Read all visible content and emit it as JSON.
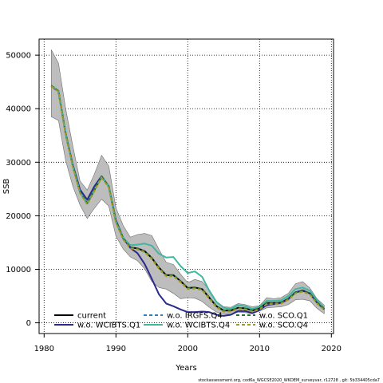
{
  "chart_data": {
    "type": "line",
    "xlabel": "Years",
    "ylabel": "SSB",
    "xlim": [
      1979.3,
      2020.3
    ],
    "ylim": [
      -2000,
      53000
    ],
    "x_ticks": [
      1980,
      1990,
      2000,
      2010,
      2020
    ],
    "y_ticks": [
      0,
      10000,
      20000,
      30000,
      40000,
      50000
    ],
    "grid": true,
    "grid_style": "dotted",
    "legend_position": "bottom-left, inside plot, three columns",
    "caption": "stockassessment.org, cod6a_WGCSE2020_WKDEM_surveyvar, r12728 , git: 5b334405cda7",
    "years": [
      1981,
      1982,
      1983,
      1984,
      1985,
      1986,
      1987,
      1988,
      1989,
      1990,
      1991,
      1992,
      1993,
      1994,
      1995,
      1996,
      1997,
      1998,
      1999,
      2000,
      2001,
      2002,
      2003,
      2004,
      2005,
      2006,
      2007,
      2008,
      2009,
      2010,
      2011,
      2012,
      2013,
      2014,
      2015,
      2016,
      2017,
      2018,
      2019
    ],
    "confidence_band": {
      "label": "current",
      "color": "#bdbdbd",
      "upper": [
        51000,
        48500,
        40000,
        33000,
        26500,
        24800,
        27800,
        31300,
        29300,
        21500,
        18200,
        16000,
        16500,
        16700,
        16300,
        13700,
        11300,
        10900,
        9100,
        7500,
        8100,
        7700,
        6200,
        4000,
        3000,
        2900,
        3600,
        3400,
        3000,
        3200,
        4700,
        4500,
        4700,
        5500,
        7300,
        7700,
        6500,
        4500,
        3300
      ],
      "lower": [
        38500,
        37800,
        30300,
        25500,
        22000,
        19500,
        21400,
        23100,
        21800,
        16200,
        13800,
        12300,
        11600,
        10100,
        7700,
        6600,
        6300,
        5500,
        4500,
        4700,
        4600,
        4000,
        2900,
        2000,
        1600,
        1600,
        2000,
        1900,
        1700,
        2200,
        2800,
        2900,
        3000,
        3400,
        4300,
        4400,
        4100,
        2700,
        1700
      ]
    },
    "series": [
      {
        "name": "current",
        "color": "#000000",
        "dash": "solid",
        "values": [
          44300,
          43300,
          35300,
          29300,
          24400,
          22300,
          24800,
          27300,
          25500,
          18900,
          15800,
          14100,
          13900,
          13400,
          12100,
          10300,
          8900,
          8900,
          7800,
          6500,
          6600,
          6300,
          4700,
          3100,
          2300,
          2300,
          2800,
          2700,
          2300,
          2700,
          3700,
          3700,
          3800,
          4500,
          5700,
          6000,
          5500,
          3800,
          2600
        ]
      },
      {
        "name": "w.o. WCIBTS.Q1",
        "color": "#2a2a8c",
        "dash": "solid",
        "values": [
          44200,
          43200,
          35400,
          29500,
          24900,
          23000,
          25500,
          27400,
          25500,
          19200,
          15900,
          14000,
          13000,
          11000,
          8200,
          5300,
          3600,
          3100,
          2500,
          2000,
          2000,
          2100,
          2000,
          1500,
          1300,
          1500,
          2200,
          2200,
          1800,
          2400,
          3300,
          3500,
          3700,
          4400,
          5700,
          6100,
          5500,
          3800,
          2500
        ]
      },
      {
        "name": "w.o. IRGFS.Q4",
        "color": "#2c7fb8",
        "dash": "dashed",
        "values": [
          44300,
          43300,
          35300,
          29300,
          24400,
          22300,
          24800,
          27300,
          25500,
          18900,
          15800,
          14100,
          13900,
          13400,
          12100,
          10300,
          8900,
          8900,
          7800,
          6500,
          6600,
          6300,
          4700,
          3100,
          2300,
          2300,
          2800,
          2700,
          2300,
          2700,
          3700,
          3700,
          3800,
          4500,
          5700,
          6000,
          5500,
          3800,
          2600
        ]
      },
      {
        "name": "w.o. WCIBTS.Q4",
        "color": "#41b6a0",
        "dash": "solid",
        "values": [
          44300,
          43300,
          35300,
          29300,
          24400,
          22300,
          24800,
          27300,
          25500,
          18900,
          15900,
          14500,
          14600,
          14800,
          14400,
          12900,
          12200,
          12300,
          10600,
          9300,
          9600,
          8600,
          6000,
          3900,
          2800,
          2600,
          3300,
          3100,
          2600,
          3000,
          4100,
          4100,
          4200,
          5000,
          6300,
          6600,
          6000,
          4200,
          2800
        ]
      },
      {
        "name": "w.o. SCO.Q1",
        "color": "#1f6f2e",
        "dash": "dashed",
        "values": [
          44300,
          43300,
          35300,
          29300,
          24400,
          22300,
          24800,
          27300,
          25500,
          18900,
          15800,
          14100,
          13900,
          13400,
          12100,
          10300,
          8900,
          8900,
          7800,
          6500,
          6600,
          6300,
          4700,
          3100,
          2300,
          2300,
          2800,
          2700,
          2300,
          2700,
          3700,
          3700,
          3800,
          4500,
          5700,
          6000,
          5500,
          3800,
          2600
        ]
      },
      {
        "name": "w.o. SCO.Q4",
        "color": "#a59a1f",
        "dash": "dashed",
        "values": [
          44200,
          43200,
          35100,
          29100,
          24200,
          22100,
          24600,
          27100,
          25300,
          18700,
          15600,
          13900,
          13700,
          13200,
          11900,
          10100,
          8700,
          8700,
          7600,
          6300,
          6400,
          6100,
          4500,
          2900,
          2100,
          2100,
          2600,
          2500,
          2100,
          2500,
          3500,
          3500,
          3600,
          4300,
          5500,
          5800,
          5300,
          3600,
          2400
        ]
      }
    ]
  }
}
